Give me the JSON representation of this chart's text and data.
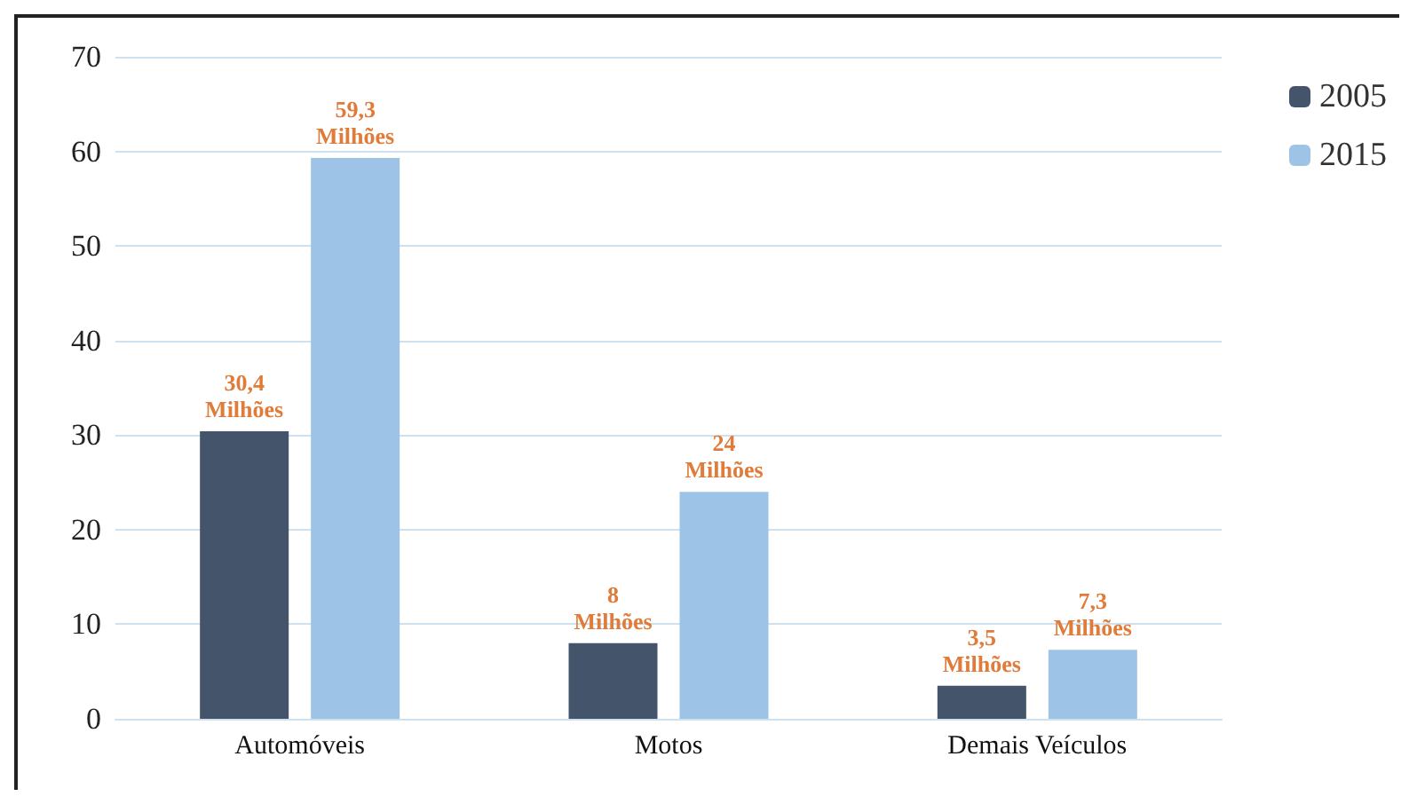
{
  "chart_data": {
    "type": "bar",
    "categories": [
      "Automóveis",
      "Motos",
      "Demais Veículos"
    ],
    "series": [
      {
        "name": "2005",
        "color": "#44546a",
        "values": [
          30.4,
          8,
          3.5
        ],
        "value_labels": [
          "30,4\nMilhões",
          "8\nMilhões",
          "3,5\nMilhões"
        ]
      },
      {
        "name": "2015",
        "color": "#9dc3e6",
        "values": [
          59.3,
          24,
          7.3
        ],
        "value_labels": [
          "59,3\nMilhões",
          "24\nMilhões",
          "7,3\nMilhões"
        ]
      }
    ],
    "ylim": [
      0,
      70
    ],
    "yticks": [
      0,
      10,
      20,
      30,
      40,
      50,
      60,
      70
    ],
    "grid": "y",
    "legend": "top right"
  }
}
